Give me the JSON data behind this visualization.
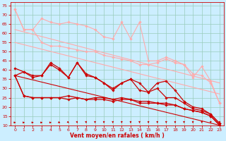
{
  "xlabel": "Vent moyen/en rafales ( km/h )",
  "background_color": "#cceeff",
  "grid_color": "#99ccbb",
  "text_color": "#cc0000",
  "xlim": [
    -0.5,
    23.5
  ],
  "ylim": [
    10,
    77
  ],
  "yticks": [
    10,
    15,
    20,
    25,
    30,
    35,
    40,
    45,
    50,
    55,
    60,
    65,
    70,
    75
  ],
  "xticks": [
    0,
    1,
    2,
    3,
    4,
    5,
    6,
    7,
    8,
    9,
    10,
    11,
    12,
    13,
    14,
    15,
    16,
    17,
    18,
    19,
    20,
    21,
    22,
    23
  ],
  "series": [
    {
      "x": [
        0,
        1,
        2,
        3,
        4,
        5,
        6,
        7,
        8,
        9,
        10,
        11,
        12,
        13,
        14,
        15,
        16,
        17,
        18,
        19,
        20,
        21,
        22,
        23
      ],
      "y": [
        73,
        62,
        62,
        68,
        66,
        65,
        66,
        65,
        64,
        62,
        58,
        57,
        66,
        57,
        66,
        45,
        45,
        47,
        45,
        43,
        36,
        42,
        34,
        22
      ],
      "color": "#ffaaaa",
      "lw": 0.8,
      "marker": "D",
      "ms": 1.8,
      "zorder": 3,
      "linestyle": "-"
    },
    {
      "x": [
        0,
        1,
        2,
        3,
        4,
        5,
        6,
        7,
        8,
        9,
        10,
        11,
        12,
        13,
        14,
        15,
        16,
        17,
        18,
        19,
        20,
        21,
        22,
        23
      ],
      "y": [
        73,
        62,
        62,
        55,
        53,
        53,
        52,
        51,
        50,
        50,
        48,
        47,
        46,
        45,
        43,
        43,
        44,
        46,
        44,
        43,
        38,
        37,
        33,
        22
      ],
      "color": "#ffaaaa",
      "lw": 0.8,
      "marker": "D",
      "ms": 1.8,
      "zorder": 3,
      "linestyle": "-"
    },
    {
      "x": [
        0,
        23
      ],
      "y": [
        62,
        33
      ],
      "color": "#ffaaaa",
      "lw": 0.8,
      "marker": null,
      "ms": 0,
      "zorder": 2,
      "linestyle": "-"
    },
    {
      "x": [
        0,
        23
      ],
      "y": [
        55,
        27
      ],
      "color": "#ffaaaa",
      "lw": 0.8,
      "marker": null,
      "ms": 0,
      "zorder": 2,
      "linestyle": "-"
    },
    {
      "x": [
        0,
        1,
        2,
        3,
        4,
        5,
        6,
        7,
        8,
        9,
        10,
        11,
        12,
        13,
        14,
        15,
        16,
        17,
        18,
        19,
        20,
        21,
        22,
        23
      ],
      "y": [
        41,
        39,
        37,
        37,
        44,
        41,
        36,
        44,
        38,
        36,
        33,
        30,
        33,
        35,
        33,
        28,
        33,
        34,
        29,
        23,
        20,
        19,
        16,
        11
      ],
      "color": "#cc0000",
      "lw": 0.9,
      "marker": "D",
      "ms": 1.8,
      "zorder": 4,
      "linestyle": "-"
    },
    {
      "x": [
        0,
        1,
        2,
        3,
        4,
        5,
        6,
        7,
        8,
        9,
        10,
        11,
        12,
        13,
        14,
        15,
        16,
        17,
        18,
        19,
        20,
        21,
        22,
        23
      ],
      "y": [
        37,
        39,
        36,
        37,
        43,
        40,
        36,
        44,
        37,
        36,
        33,
        29,
        33,
        35,
        29,
        28,
        30,
        25,
        25,
        22,
        19,
        18,
        16,
        11
      ],
      "color": "#cc0000",
      "lw": 0.9,
      "marker": "D",
      "ms": 1.8,
      "zorder": 4,
      "linestyle": "-"
    },
    {
      "x": [
        0,
        1,
        2,
        3,
        4,
        5,
        6,
        7,
        8,
        9,
        10,
        11,
        12,
        13,
        14,
        15,
        16,
        17,
        18,
        19,
        20,
        21,
        22,
        23
      ],
      "y": [
        37,
        26,
        25,
        25,
        25,
        25,
        26,
        25,
        24,
        25,
        25,
        24,
        25,
        24,
        23,
        23,
        22,
        22,
        21,
        19,
        18,
        17,
        15,
        10
      ],
      "color": "#cc0000",
      "lw": 0.9,
      "marker": "D",
      "ms": 1.8,
      "zorder": 4,
      "linestyle": "-"
    },
    {
      "x": [
        0,
        1,
        2,
        3,
        4,
        5,
        6,
        7,
        8,
        9,
        10,
        11,
        12,
        13,
        14,
        15,
        16,
        17,
        18,
        19,
        20,
        21,
        22,
        23
      ],
      "y": [
        37,
        26,
        25,
        25,
        25,
        25,
        24,
        25,
        24,
        24,
        24,
        23,
        24,
        24,
        22,
        22,
        22,
        21,
        21,
        19,
        18,
        17,
        15,
        10
      ],
      "color": "#cc0000",
      "lw": 0.9,
      "marker": "D",
      "ms": 1.8,
      "zorder": 4,
      "linestyle": "-"
    },
    {
      "x": [
        0,
        23
      ],
      "y": [
        37,
        10
      ],
      "color": "#cc0000",
      "lw": 0.8,
      "marker": null,
      "ms": 0,
      "zorder": 2,
      "linestyle": "-"
    }
  ],
  "wind_arrows_angles": [
    0,
    0,
    0,
    0,
    0,
    20,
    45,
    70,
    80,
    90,
    90,
    90,
    90,
    90,
    90,
    90,
    90,
    90,
    90,
    90,
    90,
    90,
    90,
    90
  ]
}
